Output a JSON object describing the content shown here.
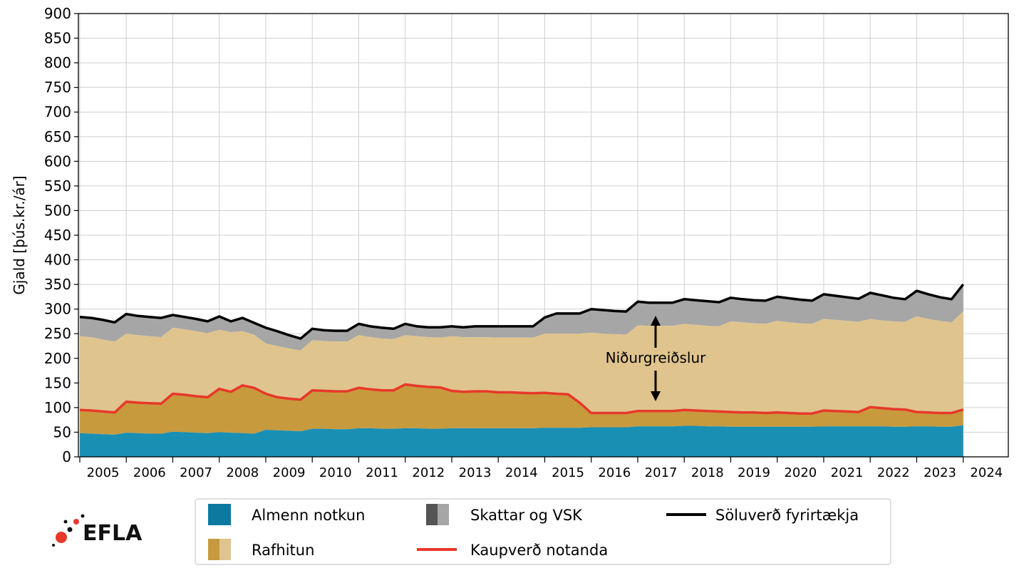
{
  "chart_data": {
    "type": "area",
    "ylabel": "Gjald [þús.kr./ár]",
    "ylim": [
      0,
      900
    ],
    "yticks": [
      0,
      50,
      100,
      150,
      200,
      250,
      300,
      350,
      400,
      450,
      500,
      550,
      600,
      650,
      700,
      750,
      800,
      850,
      900
    ],
    "xlim": [
      2004.97,
      2024.97
    ],
    "year_labels": [
      "2005",
      "2006",
      "2007",
      "2008",
      "2009",
      "2010",
      "2011",
      "2012",
      "2013",
      "2014",
      "2015",
      "2016",
      "2017",
      "2018",
      "2019",
      "2020",
      "2021",
      "2022",
      "2023",
      "2024"
    ],
    "grid": true,
    "legend_position": "below",
    "annotation": "Niðurgreiðslur",
    "colors": {
      "almenn": "#1a8fb4",
      "almenn_dark": "#0b7a9e",
      "rafhitun": "#c89a3e",
      "rafhitun_light": "#dfc48e",
      "skattar": "#a6a6a6",
      "skattar_dark": "#555555",
      "soluverd": "#000000",
      "kaupverd": "#e8382a"
    },
    "legend": [
      {
        "key": "almenn",
        "label": "Almenn notkun"
      },
      {
        "key": "rafhitun",
        "label": "Rafhitun"
      },
      {
        "key": "skattar",
        "label": "Skattar og VSK"
      },
      {
        "key": "kaupverd",
        "label": "Kaupverð notanda"
      },
      {
        "key": "soluverd",
        "label": "Söluverð fyrirtækja"
      }
    ],
    "x": [
      2005.0,
      2005.25,
      2005.5,
      2005.75,
      2006.0,
      2006.25,
      2006.5,
      2006.75,
      2007.0,
      2007.25,
      2007.5,
      2007.75,
      2008.0,
      2008.25,
      2008.5,
      2008.75,
      2009.0,
      2009.25,
      2009.5,
      2009.75,
      2010.0,
      2010.25,
      2010.5,
      2010.75,
      2011.0,
      2011.25,
      2011.5,
      2011.75,
      2012.0,
      2012.25,
      2012.5,
      2012.75,
      2013.0,
      2013.25,
      2013.5,
      2013.75,
      2014.0,
      2014.25,
      2014.5,
      2014.75,
      2015.0,
      2015.25,
      2015.5,
      2015.75,
      2016.0,
      2016.25,
      2016.5,
      2016.75,
      2017.0,
      2017.25,
      2017.5,
      2017.75,
      2018.0,
      2018.25,
      2018.5,
      2018.75,
      2019.0,
      2019.25,
      2019.5,
      2019.75,
      2020.0,
      2020.25,
      2020.5,
      2020.75,
      2021.0,
      2021.25,
      2021.5,
      2021.75,
      2022.0,
      2022.25,
      2022.5,
      2022.75,
      2023.0,
      2023.25,
      2023.5,
      2023.75,
      2024.0
    ],
    "series": [
      {
        "name": "Almenn notkun",
        "values": [
          48,
          47,
          46,
          45,
          49,
          48,
          47,
          47,
          51,
          50,
          49,
          48,
          50,
          49,
          48,
          47,
          55,
          54,
          53,
          52,
          57,
          57,
          56,
          56,
          58,
          58,
          57,
          57,
          58,
          58,
          57,
          57,
          58,
          58,
          58,
          58,
          58,
          58,
          58,
          58,
          59,
          59,
          59,
          59,
          60,
          60,
          60,
          60,
          62,
          62,
          62,
          62,
          63,
          63,
          62,
          62,
          61,
          61,
          61,
          61,
          61,
          61,
          61,
          61,
          62,
          62,
          62,
          62,
          62,
          62,
          61,
          61,
          62,
          62,
          61,
          61,
          64
        ]
      },
      {
        "name": "Kaupverð notanda",
        "values": [
          95,
          94,
          92,
          90,
          112,
          110,
          109,
          108,
          128,
          126,
          123,
          121,
          138,
          132,
          145,
          140,
          128,
          121,
          118,
          116,
          135,
          134,
          133,
          133,
          140,
          137,
          135,
          135,
          147,
          144,
          142,
          141,
          134,
          132,
          133,
          133,
          131,
          131,
          130,
          129,
          130,
          128,
          127,
          110,
          89,
          89,
          89,
          89,
          93,
          93,
          93,
          93,
          95,
          94,
          93,
          92,
          91,
          90,
          90,
          89,
          90,
          89,
          88,
          88,
          94,
          93,
          92,
          91,
          101,
          99,
          97,
          96,
          91,
          90,
          89,
          89,
          96
        ]
      },
      {
        "name": "Rafhitun",
        "values": [
          245,
          243,
          238,
          234,
          250,
          247,
          245,
          243,
          262,
          259,
          255,
          251,
          258,
          253,
          255,
          248,
          230,
          225,
          220,
          216,
          237,
          235,
          234,
          234,
          247,
          243,
          240,
          239,
          247,
          245,
          243,
          242,
          245,
          243,
          243,
          243,
          242,
          242,
          242,
          242,
          250,
          250,
          250,
          250,
          252,
          250,
          249,
          248,
          267,
          266,
          266,
          266,
          270,
          268,
          266,
          265,
          275,
          273,
          271,
          270,
          276,
          273,
          271,
          270,
          280,
          278,
          276,
          274,
          280,
          277,
          275,
          274,
          285,
          280,
          276,
          273,
          295
        ]
      },
      {
        "name": "Skattar og VSK",
        "values": [
          284,
          282,
          278,
          273,
          290,
          286,
          284,
          282,
          288,
          284,
          280,
          275,
          285,
          275,
          282,
          272,
          262,
          255,
          247,
          240,
          260,
          257,
          256,
          256,
          270,
          265,
          262,
          260,
          270,
          265,
          263,
          263,
          265,
          263,
          265,
          265,
          265,
          265,
          265,
          265,
          283,
          291,
          291,
          291,
          300,
          298,
          296,
          295,
          315,
          313,
          313,
          313,
          320,
          318,
          316,
          314,
          323,
          320,
          318,
          317,
          325,
          322,
          319,
          317,
          330,
          327,
          324,
          321,
          333,
          328,
          323,
          320,
          337,
          330,
          324,
          320,
          350
        ]
      },
      {
        "name": "Söluverð fyrirtækja",
        "values": [
          284,
          282,
          278,
          273,
          290,
          286,
          284,
          282,
          288,
          284,
          280,
          275,
          285,
          275,
          282,
          272,
          262,
          255,
          247,
          240,
          260,
          257,
          256,
          256,
          270,
          265,
          262,
          260,
          270,
          265,
          263,
          263,
          265,
          263,
          265,
          265,
          265,
          265,
          265,
          265,
          283,
          291,
          291,
          291,
          300,
          298,
          296,
          295,
          315,
          313,
          313,
          313,
          320,
          318,
          316,
          314,
          323,
          320,
          318,
          317,
          325,
          322,
          319,
          317,
          330,
          327,
          324,
          321,
          333,
          328,
          323,
          320,
          337,
          330,
          324,
          320,
          350
        ]
      }
    ]
  },
  "logo": {
    "text": "EFLA"
  }
}
